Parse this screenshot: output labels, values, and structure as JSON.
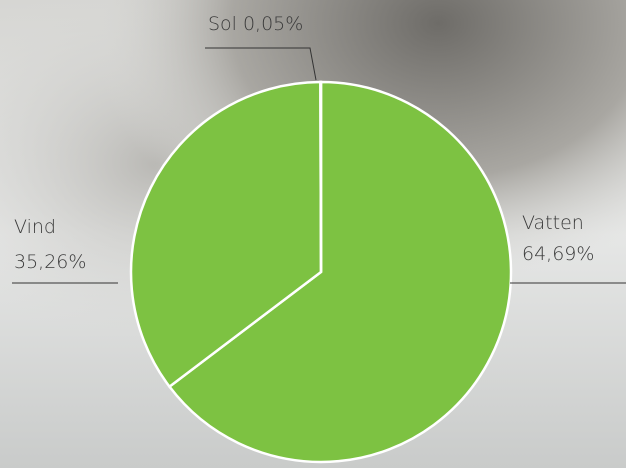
{
  "chart_data": {
    "type": "pie",
    "categories": [
      "Vatten",
      "Vind",
      "Sol"
    ],
    "values": [
      64.69,
      35.26,
      0.05
    ],
    "value_labels": [
      "64,69%",
      "35,26%",
      "0,05%"
    ],
    "color": "#7dc242"
  }
}
